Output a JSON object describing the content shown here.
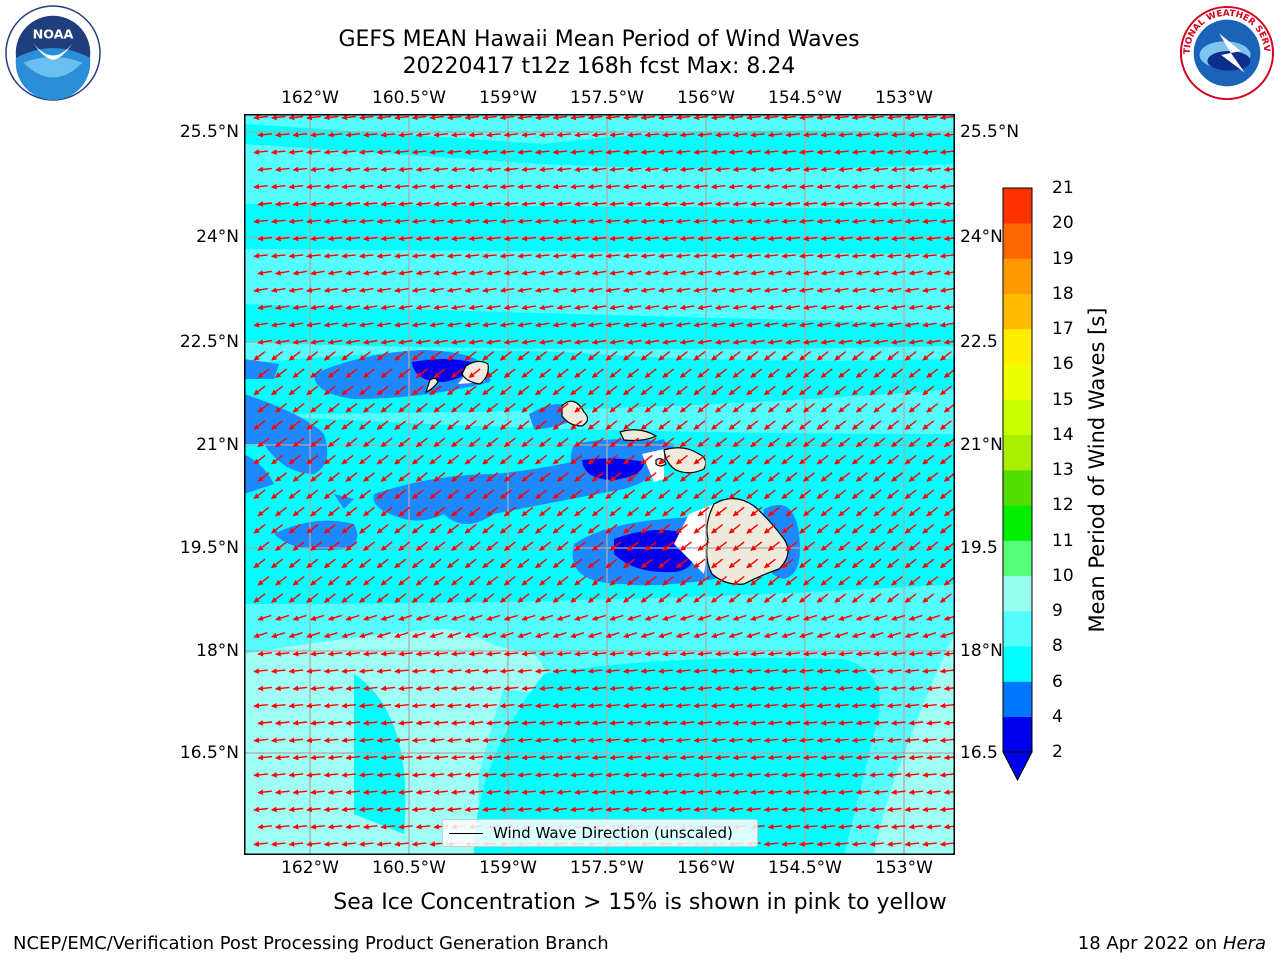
{
  "header": {
    "title_line1": "GEFS MEAN Hawaii Mean Period of Wind Waves",
    "title_line2": "20220417 t12z 168h fcst   Max: 8.24"
  },
  "logos": {
    "left": "noaa-logo",
    "left_text": "NOAA",
    "right": "national-weather-service-logo",
    "right_text": "NATIONAL WEATHER SERVICE"
  },
  "map": {
    "lon_ticks": [
      "162°W",
      "160.5°W",
      "159°W",
      "157.5°W",
      "156°W",
      "154.5°W",
      "153°W"
    ],
    "lat_ticks_left": [
      "25.5°N",
      "24°N",
      "22.5°N",
      "21°N",
      "19.5°N",
      "18°N",
      "16.5°N"
    ],
    "lat_ticks_right": [
      "25.5°N",
      "24°N",
      "22.5",
      "21°N",
      "19.5",
      "18°N",
      "16.5"
    ],
    "lon_range": [
      -163,
      -152.8
    ],
    "lat_range": [
      15.3,
      25.9
    ],
    "arrow_color": "#ff0000",
    "legend_label": "Wind Wave Direction (unscaled)"
  },
  "colorbar": {
    "title": "Mean Period of Wind Waves [s]",
    "ticks": [
      "2",
      "4",
      "6",
      "8",
      "9",
      "10",
      "11",
      "12",
      "13",
      "14",
      "15",
      "16",
      "17",
      "18",
      "19",
      "20",
      "21"
    ],
    "colors": [
      "#0000ee",
      "#0077ff",
      "#00ffff",
      "#55ffff",
      "#99ffee",
      "#55ff77",
      "#00ee00",
      "#55dd00",
      "#aaee00",
      "#ccff00",
      "#eeff00",
      "#ffee00",
      "#ffbb00",
      "#ff9900",
      "#ff6600",
      "#ff3300",
      "#ff0000"
    ],
    "under_color": "#0000ee"
  },
  "note": "Sea Ice Concentration > 15% is shown in pink to yellow",
  "footer": {
    "left": "NCEP/EMC/Verification Post Processing Product Generation Branch",
    "right_date": "18 Apr 2022 on ",
    "right_host": "Hera"
  },
  "chart_data": {
    "type": "heatmap",
    "title": "GEFS MEAN Hawaii Mean Period of Wind Waves",
    "variable": "Mean Period of Wind Waves [s]",
    "max": 8.24,
    "dominant_range": [
      6,
      8
    ],
    "lower_range_areas": [
      4,
      6
    ],
    "lowest_range_areas": [
      2,
      4
    ],
    "levels": [
      2,
      4,
      6,
      8,
      9,
      10,
      11,
      12,
      13,
      14,
      15,
      16,
      17,
      18,
      19,
      20,
      21
    ],
    "wind_wave_direction": "east to west (easterly trades)",
    "grid": true
  }
}
